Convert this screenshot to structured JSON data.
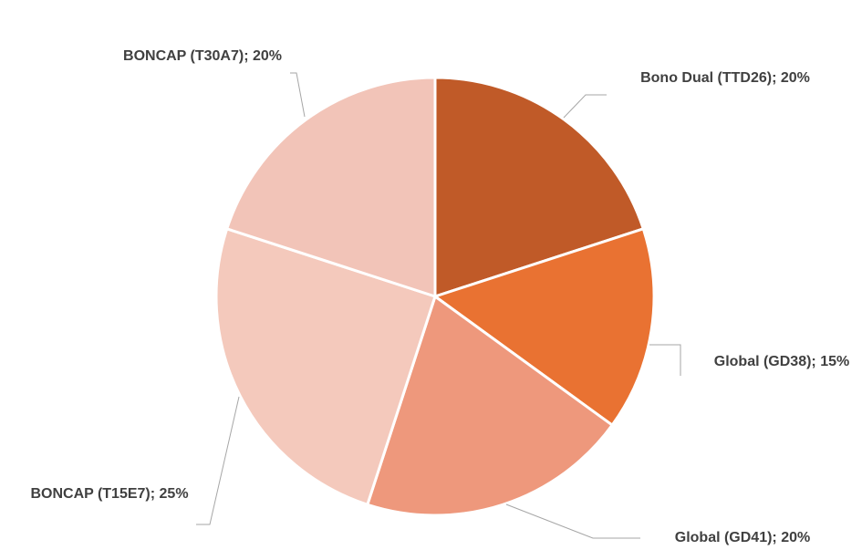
{
  "chart_data": {
    "type": "pie",
    "values": [
      20,
      15,
      20,
      25,
      20
    ],
    "value_labels": [
      "Bono Dual (TTD26); 20%",
      "Global (GD38); 15%",
      "Global (GD41); 20%",
      "BONCAP (T15E7); 25%",
      "BONCAP (T30A7); 20%"
    ],
    "colors": [
      "#c05a28",
      "#e97232",
      "#ee987c",
      "#f4c9bc",
      "#f2c4b8"
    ]
  }
}
